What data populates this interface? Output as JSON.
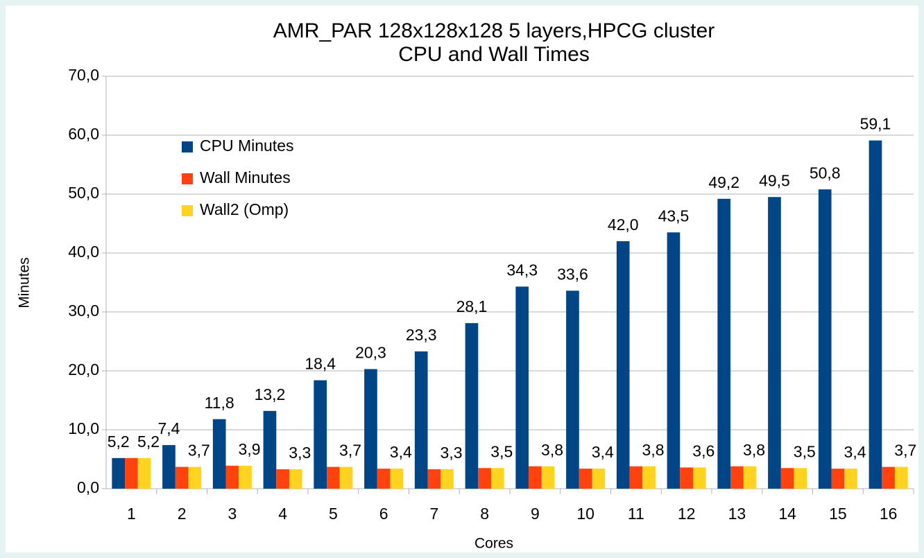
{
  "chart_data": {
    "type": "bar",
    "title": "AMR_PAR 128x128x128 5 layers,HPCG cluster",
    "subtitle": "CPU and Wall Times",
    "x_label": "Cores",
    "y_label": "Minutes",
    "categories": [
      "1",
      "2",
      "3",
      "4",
      "5",
      "6",
      "7",
      "8",
      "9",
      "10",
      "11",
      "12",
      "13",
      "14",
      "15",
      "16"
    ],
    "series": [
      {
        "name": "CPU Minutes",
        "color": "#004586",
        "values": [
          5.2,
          7.4,
          11.8,
          13.2,
          18.4,
          20.3,
          23.3,
          28.1,
          34.3,
          33.6,
          42.0,
          43.5,
          49.2,
          49.5,
          50.8,
          59.1
        ],
        "value_labels": [
          "5,2",
          "7,4",
          "11,8",
          "13,2",
          "18,4",
          "20,3",
          "23,3",
          "28,1",
          "34,3",
          "33,6",
          "42,0",
          "43,5",
          "49,2",
          "49,5",
          "50,8",
          "59,1"
        ]
      },
      {
        "name": "Wall Minutes",
        "color": "#ff420e",
        "values": [
          5.2,
          3.7,
          3.9,
          3.3,
          3.7,
          3.4,
          3.3,
          3.5,
          3.8,
          3.4,
          3.8,
          3.6,
          3.8,
          3.5,
          3.4,
          3.7
        ]
      },
      {
        "name": "Wall2 (Omp)",
        "color": "#ffd320",
        "values": [
          5.2,
          3.7,
          3.9,
          3.3,
          3.7,
          3.4,
          3.3,
          3.5,
          3.8,
          3.4,
          3.8,
          3.6,
          3.8,
          3.5,
          3.4,
          3.7
        ],
        "value_labels": [
          "5,2",
          "3,7",
          "3,9",
          "3,3",
          "3,7",
          "3,4",
          "3,3",
          "3,5",
          "3,8",
          "3,4",
          "3,8",
          "3,6",
          "3,8",
          "3,5",
          "3,4",
          "3,7"
        ]
      }
    ],
    "ylim": [
      0,
      70
    ],
    "yticks": [
      {
        "value": 0,
        "label": "0,0"
      },
      {
        "value": 10,
        "label": "10,0"
      },
      {
        "value": 20,
        "label": "20,0"
      },
      {
        "value": 30,
        "label": "30,0"
      },
      {
        "value": 40,
        "label": "40,0"
      },
      {
        "value": 50,
        "label": "50,0"
      },
      {
        "value": 60,
        "label": "60,0"
      },
      {
        "value": 70,
        "label": "70,0"
      }
    ],
    "grid": true,
    "legend": "upper-left"
  }
}
